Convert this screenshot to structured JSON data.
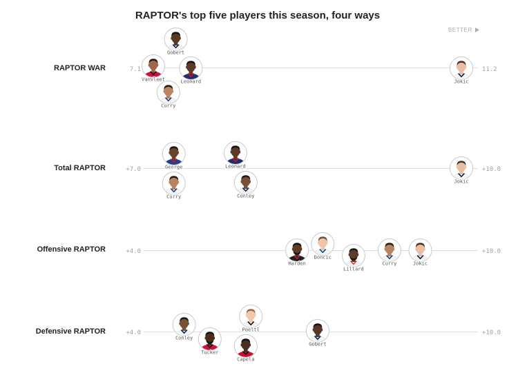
{
  "colors": {
    "text": "#222222",
    "muted": "#a0a0a0",
    "axis": "#dddddd",
    "ring": "#c8c8c8"
  },
  "chart_data": {
    "type": "scatter",
    "title": "RAPTOR's top five players this season, four ways",
    "direction_label": "BETTER",
    "rows": [
      {
        "label": "RAPTOR WAR",
        "min_label": "7.1",
        "max_label": "11.2",
        "range": [
          7.1,
          11.2
        ],
        "players": [
          {
            "name": "Jokic",
            "value": 11.2,
            "skin": "#e9bfa3",
            "hair": "#4a3526",
            "jersey": "#f4f4f4",
            "trim": "#0e2240"
          },
          {
            "name": "Leonard",
            "value": 7.6,
            "skin": "#5b3a27",
            "hair": "#151515",
            "jersey": "#1d2e6b",
            "trim": "#c8102e"
          },
          {
            "name": "Gobert",
            "value": 7.4,
            "skin": "#5a3826",
            "hair": "#161616",
            "jersey": "#f2f2f2",
            "trim": "#002b5c"
          },
          {
            "name": "Curry",
            "value": 7.3,
            "skin": "#b98560",
            "hair": "#2b1d13",
            "jersey": "#f4f4f4",
            "trim": "#1d428a"
          },
          {
            "name": "VanVleet",
            "value": 7.1,
            "skin": "#9c6847",
            "hair": "#1a1a1a",
            "jersey": "#ce1141",
            "trim": "#111111"
          }
        ]
      },
      {
        "label": "Total RAPTOR",
        "min_label": "+7.0",
        "max_label": "+10.0",
        "range": [
          7.0,
          10.0
        ],
        "players": [
          {
            "name": "Jokic",
            "value": 10.0,
            "skin": "#e9bfa3",
            "hair": "#4a3526",
            "jersey": "#f4f4f4",
            "trim": "#0e2240"
          },
          {
            "name": "Conley",
            "value": 7.9,
            "skin": "#7b5136",
            "hair": "#1a1a1a",
            "jersey": "#f2f2f2",
            "trim": "#002b5c"
          },
          {
            "name": "Leonard",
            "value": 7.8,
            "skin": "#5b3a27",
            "hair": "#151515",
            "jersey": "#1d2e6b",
            "trim": "#c8102e"
          },
          {
            "name": "George",
            "value": 7.2,
            "skin": "#6a432c",
            "hair": "#151515",
            "jersey": "#1d428a",
            "trim": "#c8102e"
          },
          {
            "name": "Curry",
            "value": 7.2,
            "skin": "#b98560",
            "hair": "#2b1d13",
            "jersey": "#f4f4f4",
            "trim": "#1d428a"
          }
        ]
      },
      {
        "label": "Offensive RAPTOR",
        "min_label": "+4.0",
        "max_label": "+10.0",
        "range": [
          4.0,
          10.0
        ],
        "players": [
          {
            "name": "Jokic",
            "value": 9.2,
            "skin": "#e9bfa3",
            "hair": "#4a3526",
            "jersey": "#f4f4f4",
            "trim": "#0e2240"
          },
          {
            "name": "Curry",
            "value": 8.6,
            "skin": "#b98560",
            "hair": "#2b1d13",
            "jersey": "#f4f4f4",
            "trim": "#1d428a"
          },
          {
            "name": "Lillard",
            "value": 7.9,
            "skin": "#5e3c28",
            "hair": "#151515",
            "jersey": "#f2f2f2",
            "trim": "#e03a3e",
            "beard": "#1a1a1a"
          },
          {
            "name": "Doncic",
            "value": 7.3,
            "skin": "#f0c6aa",
            "hair": "#7a5332",
            "jersey": "#f2f2f2",
            "trim": "#00538c"
          },
          {
            "name": "Harden",
            "value": 6.8,
            "skin": "#5e3c28",
            "hair": "#151515",
            "jersey": "#222222",
            "trim": "#ce1141",
            "beard": "#151515"
          }
        ]
      },
      {
        "label": "Defensive RAPTOR",
        "min_label": "+4.0",
        "max_label": "+10.0",
        "range": [
          4.0,
          10.0
        ],
        "players": [
          {
            "name": "Gobert",
            "value": 7.2,
            "skin": "#5a3826",
            "hair": "#161616",
            "jersey": "#f2f2f2",
            "trim": "#002b5c"
          },
          {
            "name": "Poeltl",
            "value": 5.9,
            "skin": "#f0c8ad",
            "hair": "#9a6a44",
            "jersey": "#f2f2f2",
            "trim": "#111111"
          },
          {
            "name": "Capela",
            "value": 5.8,
            "skin": "#4a2e1e",
            "hair": "#151515",
            "jersey": "#c8102e",
            "trim": "#111111"
          },
          {
            "name": "Tucker",
            "value": 5.1,
            "skin": "#4a2e1e",
            "hair": "#151515",
            "jersey": "#ce1141",
            "trim": "#111111",
            "beard": "#151515"
          },
          {
            "name": "Conley",
            "value": 4.6,
            "skin": "#7b5136",
            "hair": "#1a1a1a",
            "jersey": "#f2f2f2",
            "trim": "#002b5c"
          }
        ]
      }
    ]
  }
}
